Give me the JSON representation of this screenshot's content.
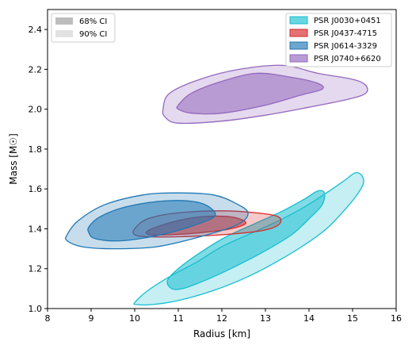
{
  "chart_data": {
    "type": "contour",
    "xlabel": "Radius [km]",
    "ylabel": "Mass [M☉]",
    "xlim": [
      8,
      16
    ],
    "ylim": [
      1.0,
      2.5
    ],
    "xticks": [
      "8",
      "9",
      "10",
      "11",
      "12",
      "13",
      "14",
      "15",
      "16"
    ],
    "yticks": [
      "1.0",
      "1.2",
      "1.4",
      "1.6",
      "1.8",
      "2.0",
      "2.2",
      "2.4"
    ],
    "xtick_values": [
      8,
      9,
      10,
      11,
      12,
      13,
      14,
      15,
      16
    ],
    "ytick_values": [
      1.0,
      1.2,
      1.4,
      1.6,
      1.8,
      2.0,
      2.2,
      2.4
    ],
    "grid": false,
    "ci_legend": {
      "placement": "top-left",
      "entries": [
        {
          "label": "68% CI",
          "color": "#bdbdbd"
        },
        {
          "label": "90% CI",
          "color": "#e2e2e2"
        }
      ]
    },
    "series_legend_placement": "top-right",
    "series": [
      {
        "name": "PSR J0030+0451",
        "fill": "#17becf",
        "stroke": "#17becf",
        "ci90": [
          [
            10.0,
            1.03
          ],
          [
            10.3,
            1.09
          ],
          [
            10.8,
            1.16
          ],
          [
            11.4,
            1.23
          ],
          [
            12.0,
            1.31
          ],
          [
            12.7,
            1.38
          ],
          [
            13.3,
            1.44
          ],
          [
            13.9,
            1.51
          ],
          [
            14.4,
            1.58
          ],
          [
            14.8,
            1.64
          ],
          [
            15.05,
            1.68
          ],
          [
            15.2,
            1.67
          ],
          [
            15.25,
            1.63
          ],
          [
            15.1,
            1.57
          ],
          [
            14.8,
            1.49
          ],
          [
            14.4,
            1.4
          ],
          [
            13.9,
            1.32
          ],
          [
            13.3,
            1.24
          ],
          [
            12.6,
            1.16
          ],
          [
            11.8,
            1.09
          ],
          [
            11.0,
            1.04
          ],
          [
            10.4,
            1.02
          ],
          [
            10.05,
            1.02
          ]
        ],
        "ci68": [
          [
            10.75,
            1.14
          ],
          [
            11.0,
            1.2
          ],
          [
            11.5,
            1.28
          ],
          [
            12.1,
            1.36
          ],
          [
            12.8,
            1.43
          ],
          [
            13.4,
            1.49
          ],
          [
            13.9,
            1.55
          ],
          [
            14.2,
            1.59
          ],
          [
            14.35,
            1.58
          ],
          [
            14.3,
            1.52
          ],
          [
            14.0,
            1.45
          ],
          [
            13.6,
            1.37
          ],
          [
            13.0,
            1.29
          ],
          [
            12.3,
            1.21
          ],
          [
            11.6,
            1.14
          ],
          [
            11.1,
            1.1
          ],
          [
            10.85,
            1.1
          ]
        ]
      },
      {
        "name": "PSR J0437-4715",
        "fill": "#d62728",
        "stroke": "#d62728",
        "ci90": [
          [
            10.0,
            1.4
          ],
          [
            10.3,
            1.45
          ],
          [
            11.0,
            1.48
          ],
          [
            12.0,
            1.49
          ],
          [
            12.8,
            1.48
          ],
          [
            13.3,
            1.46
          ],
          [
            13.3,
            1.42
          ],
          [
            12.9,
            1.39
          ],
          [
            12.0,
            1.37
          ],
          [
            11.0,
            1.36
          ],
          [
            10.3,
            1.36
          ],
          [
            10.0,
            1.37
          ]
        ],
        "ci68": [
          [
            10.3,
            1.39
          ],
          [
            10.8,
            1.43
          ],
          [
            11.5,
            1.46
          ],
          [
            12.2,
            1.46
          ],
          [
            12.55,
            1.43
          ],
          [
            12.2,
            1.4
          ],
          [
            11.5,
            1.38
          ],
          [
            10.8,
            1.37
          ],
          [
            10.35,
            1.37
          ]
        ]
      },
      {
        "name": "PSR J0614-3329",
        "fill": "#1f77b4",
        "stroke": "#1f77b4",
        "ci90": [
          [
            8.45,
            1.37
          ],
          [
            8.7,
            1.44
          ],
          [
            9.3,
            1.52
          ],
          [
            10.2,
            1.57
          ],
          [
            11.0,
            1.58
          ],
          [
            11.8,
            1.57
          ],
          [
            12.3,
            1.53
          ],
          [
            12.6,
            1.48
          ],
          [
            12.35,
            1.42
          ],
          [
            11.5,
            1.36
          ],
          [
            10.5,
            1.31
          ],
          [
            9.5,
            1.3
          ],
          [
            8.8,
            1.31
          ],
          [
            8.45,
            1.34
          ]
        ],
        "ci68": [
          [
            8.95,
            1.41
          ],
          [
            9.2,
            1.46
          ],
          [
            9.8,
            1.51
          ],
          [
            10.7,
            1.54
          ],
          [
            11.5,
            1.53
          ],
          [
            11.85,
            1.47
          ],
          [
            11.4,
            1.42
          ],
          [
            10.6,
            1.37
          ],
          [
            9.7,
            1.34
          ],
          [
            9.1,
            1.35
          ],
          [
            8.95,
            1.38
          ]
        ]
      },
      {
        "name": "PSR J0740+6620",
        "fill": "#9467bd",
        "stroke": "#9467bd",
        "ci90": [
          [
            10.65,
            2.0
          ],
          [
            10.8,
            2.08
          ],
          [
            11.5,
            2.15
          ],
          [
            12.4,
            2.2
          ],
          [
            13.4,
            2.22
          ],
          [
            14.2,
            2.18
          ],
          [
            15.0,
            2.15
          ],
          [
            15.3,
            2.12
          ],
          [
            15.3,
            2.08
          ],
          [
            14.9,
            2.05
          ],
          [
            14.0,
            2.01
          ],
          [
            13.0,
            1.97
          ],
          [
            12.0,
            1.94
          ],
          [
            11.0,
            1.93
          ],
          [
            10.7,
            1.96
          ]
        ],
        "ci68": [
          [
            11.0,
            2.02
          ],
          [
            11.3,
            2.08
          ],
          [
            12.0,
            2.14
          ],
          [
            12.8,
            2.18
          ],
          [
            13.6,
            2.16
          ],
          [
            14.2,
            2.13
          ],
          [
            14.3,
            2.1
          ],
          [
            13.8,
            2.07
          ],
          [
            13.0,
            2.02
          ],
          [
            12.0,
            1.98
          ],
          [
            11.3,
            1.98
          ],
          [
            11.0,
            2.0
          ]
        ]
      }
    ]
  }
}
